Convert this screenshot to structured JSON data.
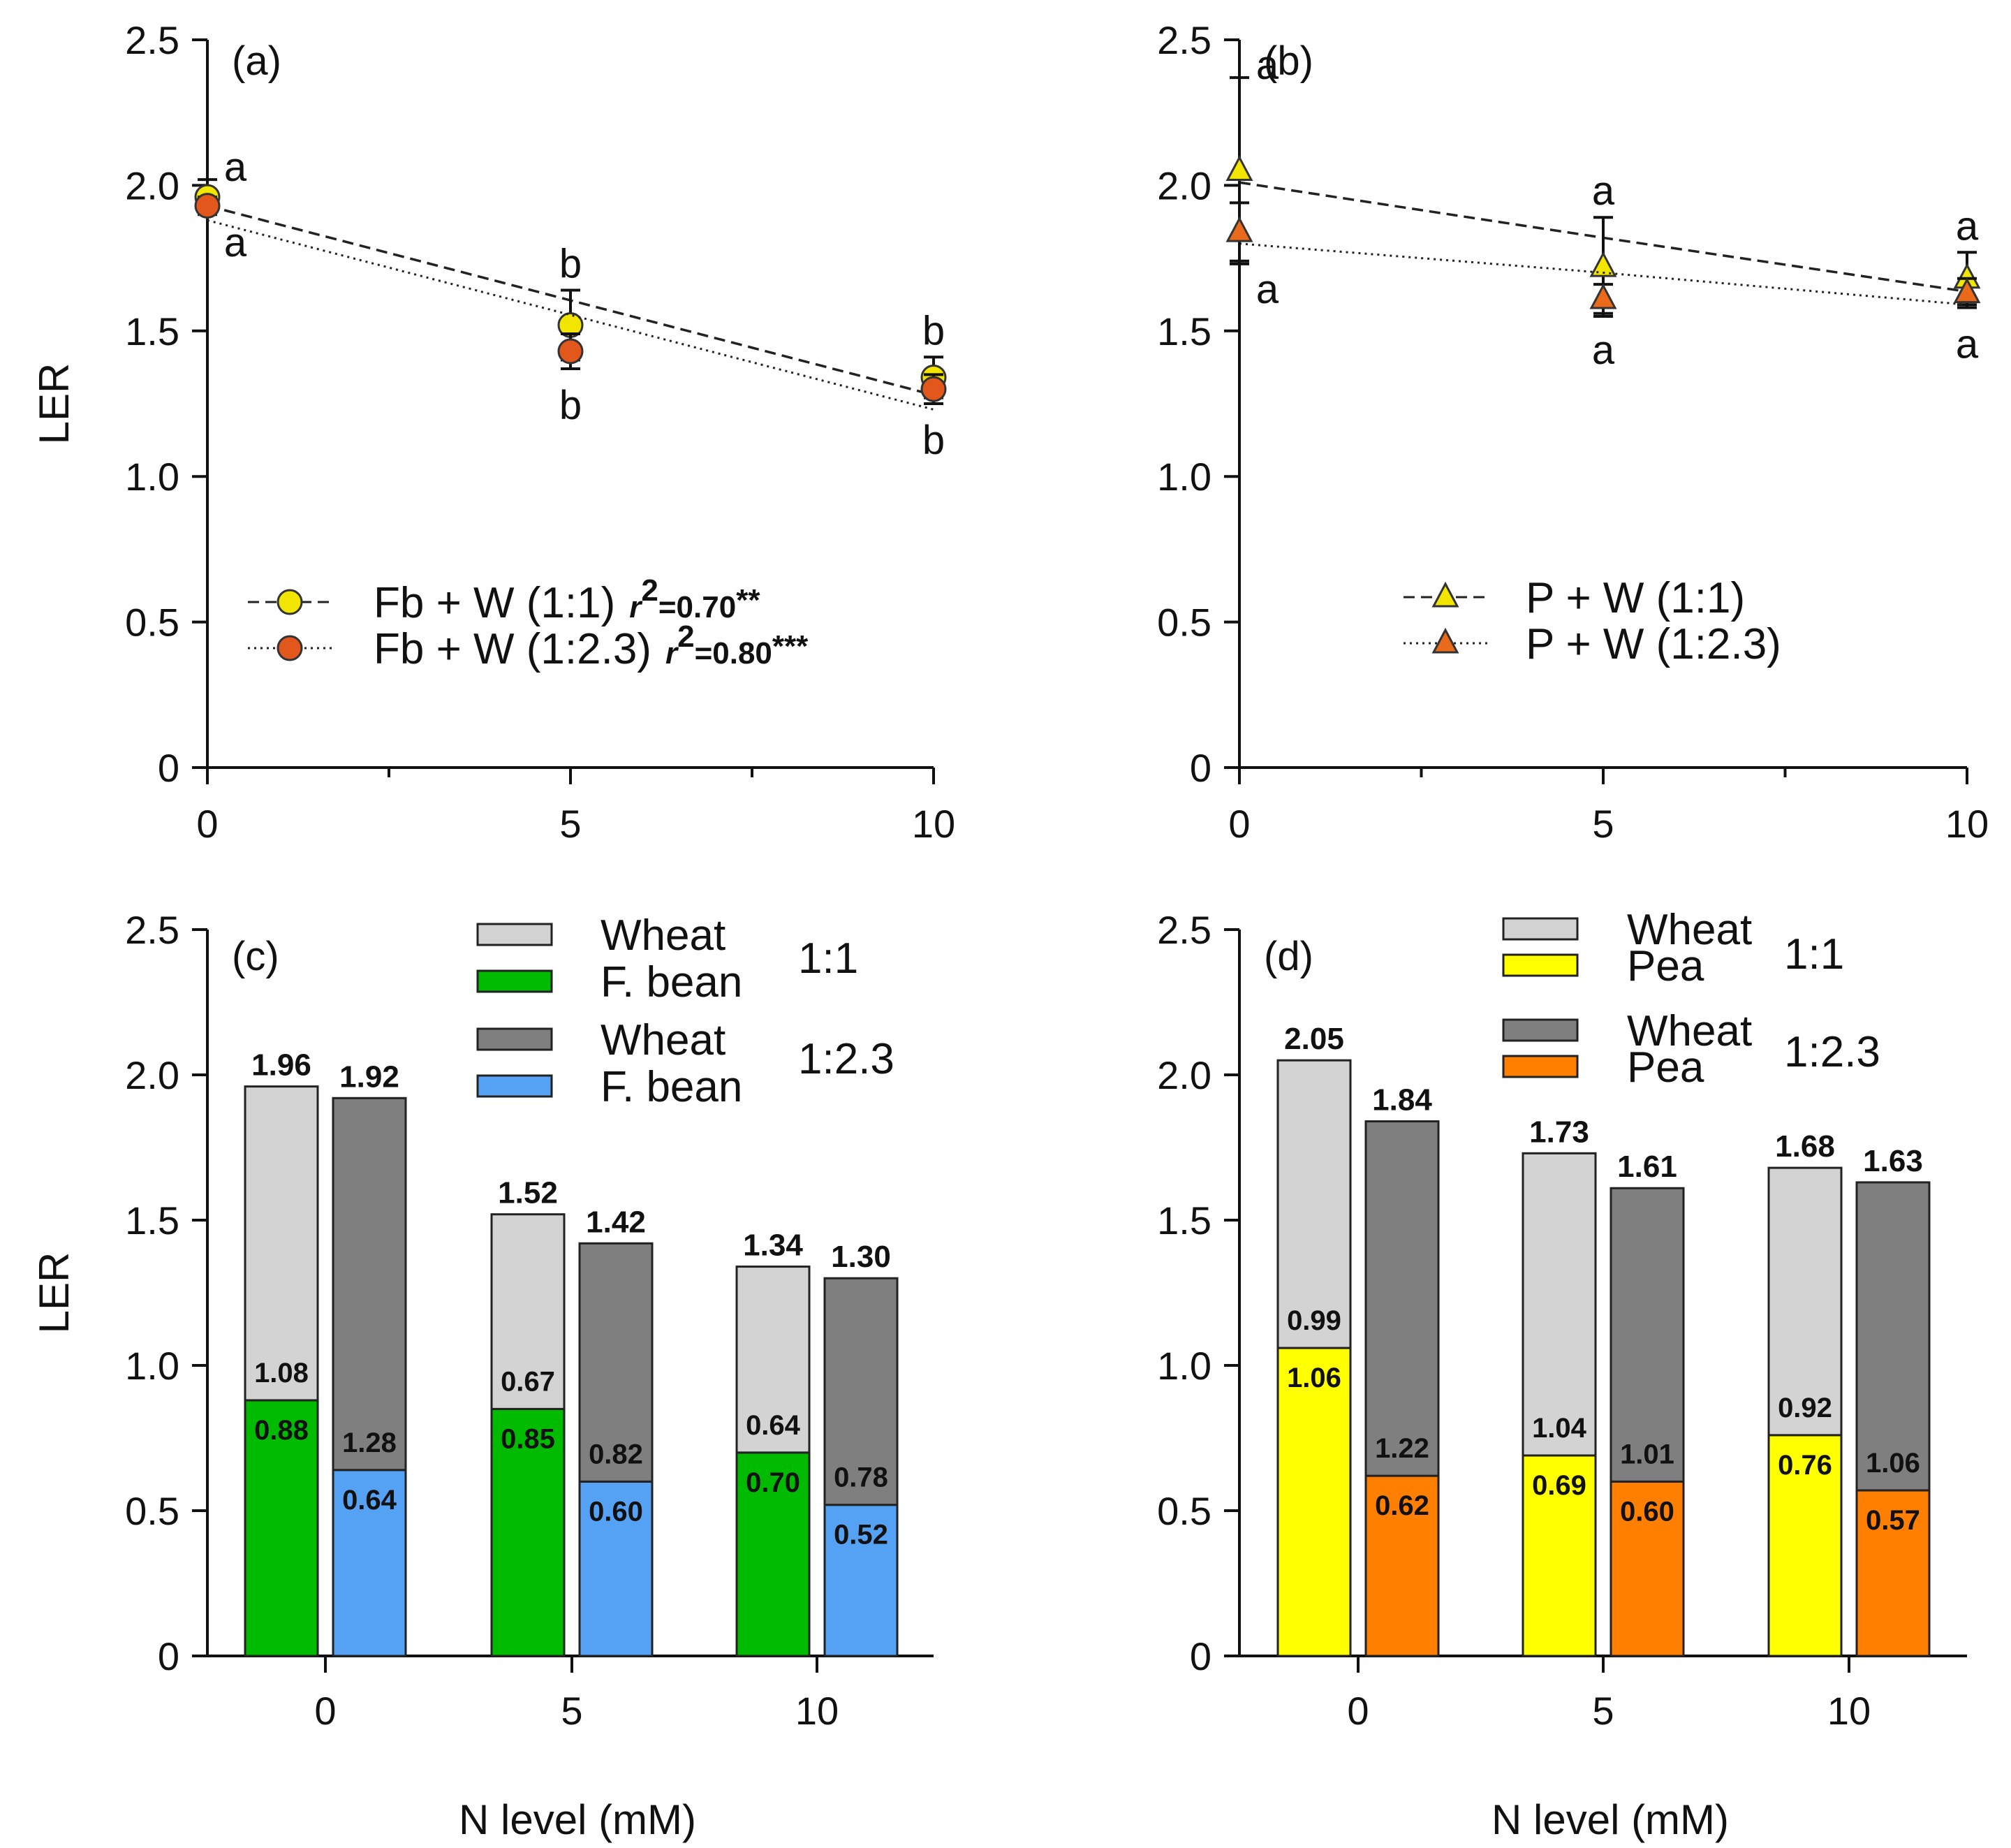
{
  "figure": {
    "ylabel": "LER",
    "xlabel": "N level (mM)",
    "y_ticks": [
      "0",
      "0.5",
      "1.0",
      "1.5",
      "2.0",
      "2.5"
    ],
    "x_ticks": [
      "0",
      "5",
      "10"
    ]
  },
  "colors": {
    "yellow": "#f2e600",
    "orange_marker": "#e2571b",
    "orange_triangle": "#e86a1a",
    "wheat_light": "#d3d3d3",
    "wheat_dark": "#7f7f7f",
    "fbean_green": "#00bb00",
    "fbean_blue": "#55a2f5",
    "pea_yellow": "#ffff00",
    "pea_orange": "#ff7f00"
  },
  "chart_data": [
    {
      "id": "a",
      "type": "scatter",
      "panel_label": "(a)",
      "ylabel": "LER",
      "ylim": [
        0,
        2.5
      ],
      "xlim": [
        0,
        10
      ],
      "x": [
        0,
        5,
        10
      ],
      "series": [
        {
          "name": "Fb + W (1:1)",
          "r2_label": "r²=0.70**",
          "r2_var": "r",
          "r2_rest": "=0.70**",
          "marker": "circle",
          "color": "#f2e600",
          "values": [
            1.96,
            1.52,
            1.34
          ],
          "errors": [
            0.06,
            0.12,
            0.07
          ],
          "letters": [
            "a",
            "b",
            "b"
          ],
          "letter_pos": "above",
          "fit": [
            1.93,
            1.605,
            1.28
          ],
          "fit_style": "dashed"
        },
        {
          "name": "Fb + W (1:2.3)",
          "r2_label": "r²=0.80***",
          "r2_var": "r",
          "r2_rest": "=0.80***",
          "marker": "circle",
          "color": "#e2571b",
          "values": [
            1.93,
            1.43,
            1.3
          ],
          "errors": [
            0.03,
            0.06,
            0.05
          ],
          "letters": [
            "a",
            "b",
            "b"
          ],
          "letter_pos": "below",
          "fit": [
            1.88,
            1.555,
            1.23
          ],
          "fit_style": "dotted"
        }
      ],
      "legend_position": "lower-left"
    },
    {
      "id": "b",
      "type": "scatter",
      "panel_label": "(b)",
      "ylim": [
        0,
        2.5
      ],
      "xlim": [
        0,
        10
      ],
      "x": [
        0,
        5,
        10
      ],
      "series": [
        {
          "name": "P + W (1:1)",
          "marker": "triangle",
          "color": "#f2e600",
          "values": [
            2.05,
            1.72,
            1.68
          ],
          "errors": [
            0.32,
            0.17,
            0.09
          ],
          "letters": [
            "a",
            "a",
            "a"
          ],
          "letter_pos": "above",
          "fit": [
            2.01,
            1.82,
            1.635
          ],
          "fit_style": "dashed"
        },
        {
          "name": "P + W (1:2.3)",
          "marker": "triangle",
          "color": "#e86a1a",
          "values": [
            1.84,
            1.61,
            1.63
          ],
          "errors": [
            0.1,
            0.05,
            0.05
          ],
          "letters": [
            "a",
            "a",
            "a"
          ],
          "letter_pos": "below",
          "fit": [
            1.8,
            1.7,
            1.59
          ],
          "fit_style": "dotted"
        }
      ],
      "legend_position": "lower-center"
    },
    {
      "id": "c",
      "type": "bar",
      "stacked": true,
      "panel_label": "(c)",
      "ylabel": "LER",
      "xlabel": "N level (mM)",
      "ylim": [
        0,
        2.5
      ],
      "categories": [
        "0",
        "5",
        "10"
      ],
      "bars": [
        {
          "ratio": "1:1",
          "category": "0",
          "legume": 0.88,
          "wheat": 1.08,
          "total": "1.96",
          "legume_label": "0.88",
          "wheat_label": "1.08",
          "legume_color": "#00bb00",
          "wheat_color": "#d3d3d3"
        },
        {
          "ratio": "1:2.3",
          "category": "0",
          "legume": 0.64,
          "wheat": 1.28,
          "total": "1.92",
          "legume_label": "0.64",
          "wheat_label": "1.28",
          "legume_color": "#55a2f5",
          "wheat_color": "#7f7f7f"
        },
        {
          "ratio": "1:1",
          "category": "5",
          "legume": 0.85,
          "wheat": 0.67,
          "total": "1.52",
          "legume_label": "0.85",
          "wheat_label": "0.67",
          "legume_color": "#00bb00",
          "wheat_color": "#d3d3d3"
        },
        {
          "ratio": "1:2.3",
          "category": "5",
          "legume": 0.6,
          "wheat": 0.82,
          "total": "1.42",
          "legume_label": "0.60",
          "wheat_label": "0.82",
          "legume_color": "#55a2f5",
          "wheat_color": "#7f7f7f"
        },
        {
          "ratio": "1:1",
          "category": "10",
          "legume": 0.7,
          "wheat": 0.64,
          "total": "1.34",
          "legume_label": "0.70",
          "wheat_label": "0.64",
          "legume_color": "#00bb00",
          "wheat_color": "#d3d3d3"
        },
        {
          "ratio": "1:2.3",
          "category": "10",
          "legume": 0.52,
          "wheat": 0.78,
          "total": "1.30",
          "legume_label": "0.52",
          "wheat_label": "0.78",
          "legume_color": "#55a2f5",
          "wheat_color": "#7f7f7f"
        }
      ],
      "legend": {
        "groups": [
          {
            "ratio": "1:1",
            "entries": [
              {
                "label": "Wheat",
                "color": "#d3d3d3"
              },
              {
                "label": "F. bean",
                "color": "#00bb00"
              }
            ]
          },
          {
            "ratio": "1:2.3",
            "entries": [
              {
                "label": "Wheat",
                "color": "#7f7f7f"
              },
              {
                "label": "F. bean",
                "color": "#55a2f5"
              }
            ]
          }
        ],
        "position": "top-right"
      }
    },
    {
      "id": "d",
      "type": "bar",
      "stacked": true,
      "panel_label": "(d)",
      "xlabel": "N level (mM)",
      "ylim": [
        0,
        2.5
      ],
      "categories": [
        "0",
        "5",
        "10"
      ],
      "bars": [
        {
          "ratio": "1:1",
          "category": "0",
          "legume": 1.06,
          "wheat": 0.99,
          "total": "2.05",
          "legume_label": "1.06",
          "wheat_label": "0.99",
          "legume_color": "#ffff00",
          "wheat_color": "#d3d3d3"
        },
        {
          "ratio": "1:2.3",
          "category": "0",
          "legume": 0.62,
          "wheat": 1.22,
          "total": "1.84",
          "legume_label": "0.62",
          "wheat_label": "1.22",
          "legume_color": "#ff7f00",
          "wheat_color": "#7f7f7f"
        },
        {
          "ratio": "1:1",
          "category": "5",
          "legume": 0.69,
          "wheat": 1.04,
          "total": "1.73",
          "legume_label": "0.69",
          "wheat_label": "1.04",
          "legume_color": "#ffff00",
          "wheat_color": "#d3d3d3"
        },
        {
          "ratio": "1:2.3",
          "category": "5",
          "legume": 0.6,
          "wheat": 1.01,
          "total": "1.61",
          "legume_label": "0.60",
          "wheat_label": "1.01",
          "legume_color": "#ff7f00",
          "wheat_color": "#7f7f7f"
        },
        {
          "ratio": "1:1",
          "category": "10",
          "legume": 0.76,
          "wheat": 0.92,
          "total": "1.68",
          "legume_label": "0.76",
          "wheat_label": "0.92",
          "legume_color": "#ffff00",
          "wheat_color": "#d3d3d3"
        },
        {
          "ratio": "1:2.3",
          "category": "10",
          "legume": 0.57,
          "wheat": 1.06,
          "total": "1.63",
          "legume_label": "0.57",
          "wheat_label": "1.06",
          "legume_color": "#ff7f00",
          "wheat_color": "#7f7f7f"
        }
      ],
      "legend": {
        "groups": [
          {
            "ratio": "1:1",
            "entries": [
              {
                "label": "Wheat",
                "color": "#d3d3d3"
              },
              {
                "label": "Pea",
                "color": "#ffff00"
              }
            ]
          },
          {
            "ratio": "1:2.3",
            "entries": [
              {
                "label": "Wheat",
                "color": "#7f7f7f"
              },
              {
                "label": "Pea",
                "color": "#ff7f00"
              }
            ]
          }
        ],
        "position": "top-right"
      }
    }
  ]
}
